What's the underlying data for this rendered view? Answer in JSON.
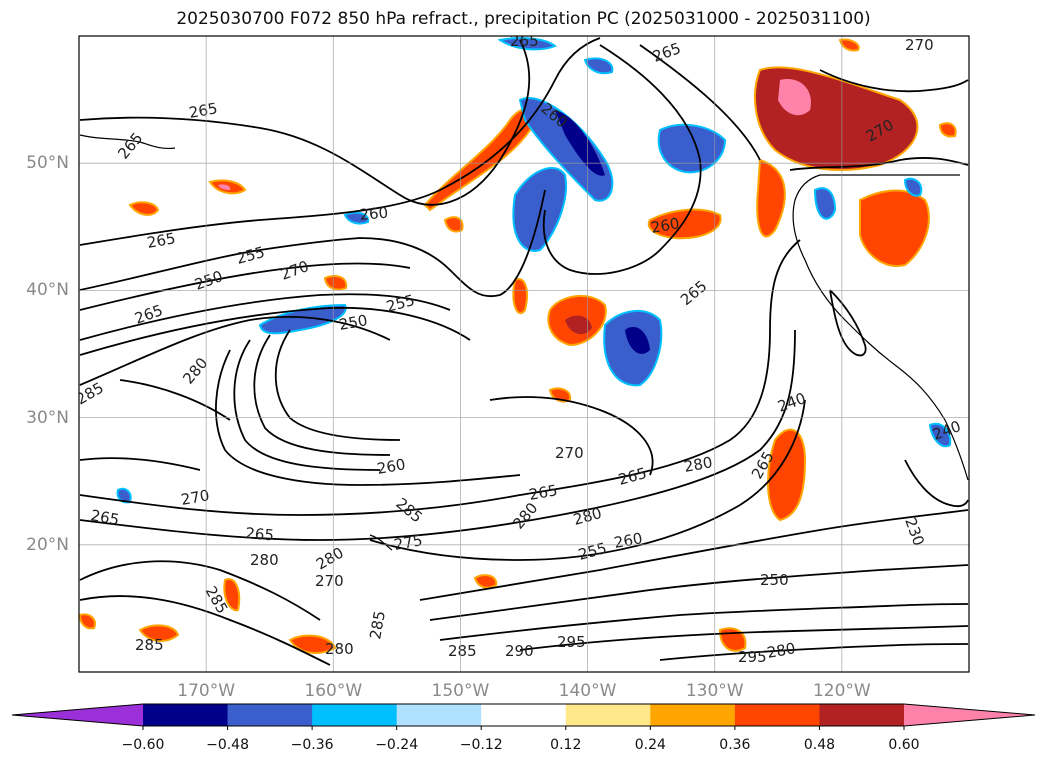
{
  "title": "2025030700 F072 850 hPa refract., precipitation PC (2025031000 - 2025031100)",
  "map": {
    "lat_labels": [
      {
        "text": "50°N",
        "lat": 50
      },
      {
        "text": "40°N",
        "lat": 40
      },
      {
        "text": "30°N",
        "lat": 30
      },
      {
        "text": "20°N",
        "lat": 20
      }
    ],
    "lon_labels": [
      {
        "text": "170°W",
        "lon": -170
      },
      {
        "text": "160°W",
        "lon": -160
      },
      {
        "text": "150°W",
        "lon": -150
      },
      {
        "text": "140°W",
        "lon": -140
      },
      {
        "text": "130°W",
        "lon": -130
      },
      {
        "text": "120°W",
        "lon": -120
      }
    ],
    "extent": {
      "lon_min": -180,
      "lon_max": -110,
      "lat_min": 10,
      "lat_max": 60
    },
    "gridlines": true,
    "contour_labels": [
      "265",
      "260",
      "255",
      "250",
      "270",
      "280",
      "285",
      "290",
      "295",
      "275",
      "240",
      "230"
    ],
    "colorbar": {
      "ticks": [
        "−0.60",
        "−0.48",
        "−0.36",
        "−0.24",
        "−0.12",
        "0.12",
        "0.24",
        "0.36",
        "0.48",
        "0.60"
      ],
      "colors": [
        "#9b30d9",
        "#00008b",
        "#3a5fcd",
        "#00bfff",
        "#b0e2ff",
        "#ffffff",
        "#ffe88a",
        "#ffa500",
        "#ff4500",
        "#b22222",
        "#ff82ab"
      ]
    }
  }
}
